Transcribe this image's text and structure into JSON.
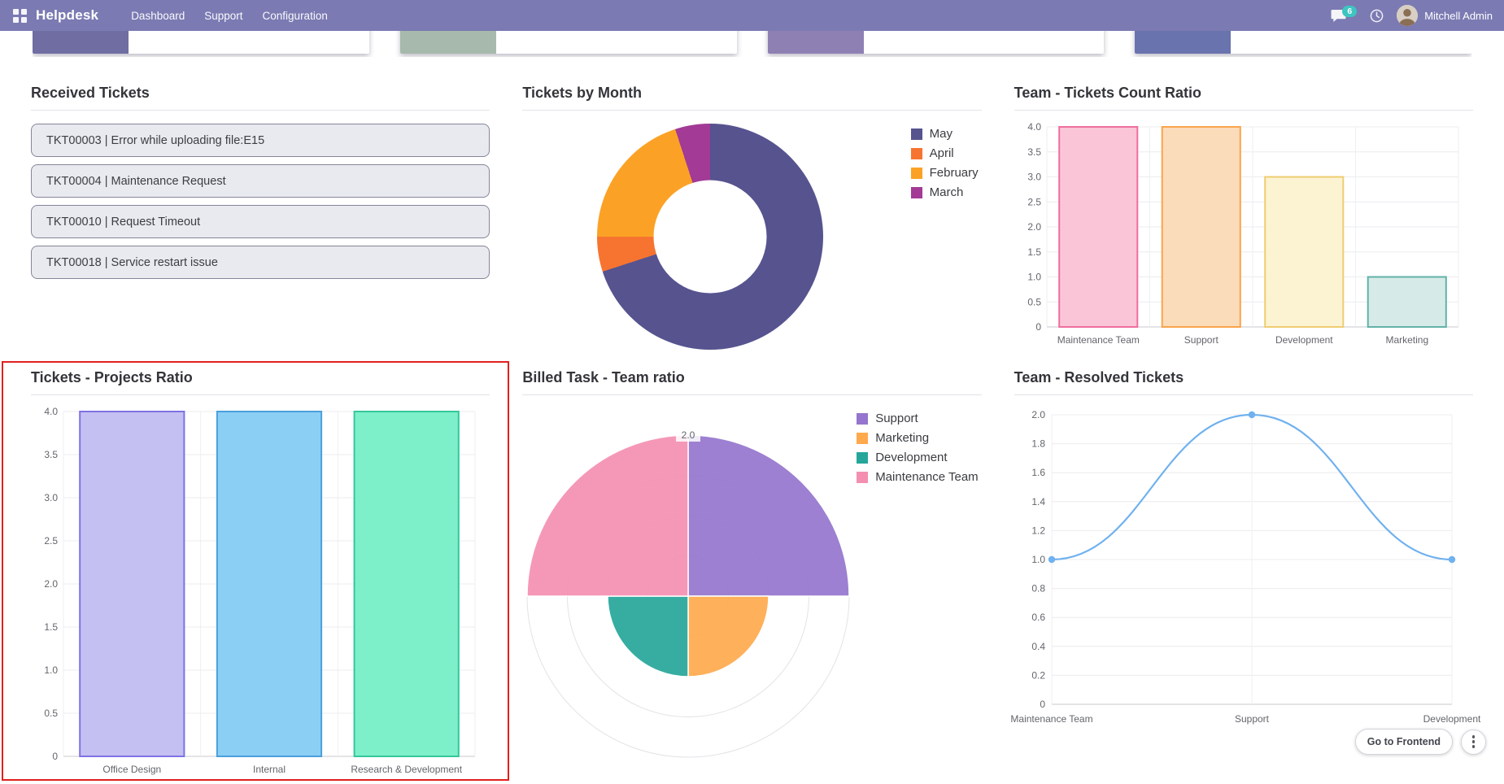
{
  "navbar": {
    "app_title": "Helpdesk",
    "menu": [
      {
        "label": "Dashboard"
      },
      {
        "label": "Support"
      },
      {
        "label": "Configuration"
      }
    ],
    "messages_count": "6",
    "user_name": "Mitchell Admin",
    "bg_color": "#7b7ab3",
    "badge_color": "#3ec4c1",
    "icons": [
      "apps-grid-icon",
      "chat-bubble-icon",
      "clock-activities-icon",
      "user-avatar"
    ]
  },
  "kpi_cards": [
    {
      "color": "#6f6da2"
    },
    {
      "color": "#a7b9ac"
    },
    {
      "color": "#8f80b4"
    },
    {
      "color": "#6973ae"
    }
  ],
  "received_tickets": {
    "title": "Received Tickets",
    "items": [
      {
        "label": "TKT00003 | Error while uploading file:E15"
      },
      {
        "label": "TKT00004 | Maintenance Request"
      },
      {
        "label": "TKT00010 | Request Timeout"
      },
      {
        "label": "TKT00018 | Service restart issue"
      }
    ]
  },
  "chart_data": [
    {
      "id": "tickets_by_month",
      "type": "pie",
      "title": "Tickets by Month",
      "labels": [
        "May",
        "April",
        "February",
        "March"
      ],
      "values": [
        14,
        1,
        4,
        1
      ],
      "colors": [
        "#56538f",
        "#f77430",
        "#fba226",
        "#a23a96"
      ],
      "donut_hole_ratio": 0.5,
      "legend_position": "right"
    },
    {
      "id": "team_tickets_count_ratio",
      "type": "bar",
      "title": "Team - Tickets Count Ratio",
      "categories": [
        "Maintenance Team",
        "Support",
        "Development",
        "Marketing"
      ],
      "values": [
        4,
        4,
        3,
        1
      ],
      "bar_fill": [
        "#fac5d7",
        "#fbdcba",
        "#fcf3d2",
        "#d6ebe8"
      ],
      "bar_border": [
        "#ef6e9e",
        "#f9a44c",
        "#eecd71",
        "#62b2a7"
      ],
      "xlabel": "",
      "ylabel": "",
      "ylim": [
        0,
        4
      ],
      "ytick_step": 0.5,
      "grid": true
    },
    {
      "id": "tickets_projects_ratio",
      "type": "bar",
      "title": "Tickets - Projects Ratio",
      "categories": [
        "Office Design",
        "Internal",
        "Research & Development"
      ],
      "values": [
        4,
        4,
        4
      ],
      "bar_fill": [
        "#c5c0f2",
        "#8ccff5",
        "#7df0c9"
      ],
      "bar_border": [
        "#7d73e3",
        "#4aa0dc",
        "#35c79c"
      ],
      "xlabel": "",
      "ylabel": "",
      "ylim": [
        0,
        4
      ],
      "ytick_step": 0.5,
      "grid": true
    },
    {
      "id": "billed_task_team_ratio",
      "type": "polar_area",
      "title": "Billed Task - Team ratio",
      "labels": [
        "Support",
        "Marketing",
        "Development",
        "Maintenance Team"
      ],
      "values": [
        2,
        1,
        1,
        2
      ],
      "colors": [
        "#9575cd",
        "#ffa94d",
        "#26a69a",
        "#f48fb1"
      ],
      "rmax": 2.0,
      "rtick_step": 0.5,
      "rtick_label": "2.0",
      "legend_position": "right"
    },
    {
      "id": "team_resolved_tickets",
      "type": "line",
      "title": "Team - Resolved Tickets",
      "categories": [
        "Maintenance Team",
        "Support",
        "Development"
      ],
      "values": [
        1,
        2,
        1
      ],
      "line_color": "#70b1ef",
      "xlabel": "",
      "ylabel": "",
      "ylim": [
        0,
        2
      ],
      "ytick_step": 0.2,
      "grid": true
    }
  ],
  "footer": {
    "frontend_button": "Go to Frontend",
    "menu_icon": "kebab-menu"
  },
  "annotation": {
    "color": "#e11f1e"
  }
}
